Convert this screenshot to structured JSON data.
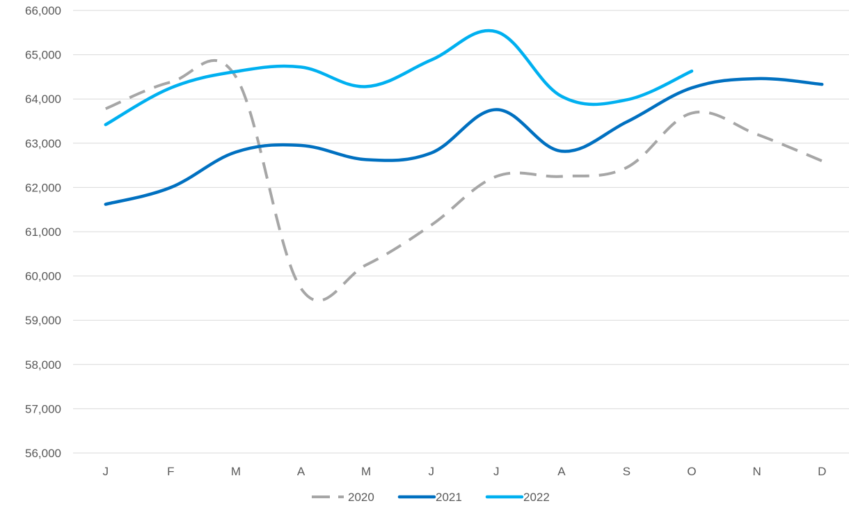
{
  "chart_data": {
    "type": "line",
    "title": "",
    "xlabel": "",
    "ylabel": "",
    "categories": [
      "J",
      "F",
      "M",
      "A",
      "M",
      "J",
      "J",
      "A",
      "S",
      "O",
      "N",
      "D"
    ],
    "ylim": [
      56000,
      66000
    ],
    "yticks": [
      56000,
      57000,
      58000,
      59000,
      60000,
      61000,
      62000,
      63000,
      64000,
      65000,
      66000
    ],
    "ytick_labels": [
      "56,000",
      "57,000",
      "58,000",
      "59,000",
      "60,000",
      "61,000",
      "62,000",
      "63,000",
      "64,000",
      "65,000",
      "66,000"
    ],
    "grid": true,
    "legend": "bottom",
    "series": [
      {
        "name": "2020",
        "color": "#a6a6a6",
        "style": "dashed",
        "values": [
          63780,
          64380,
          64500,
          59720,
          60250,
          61150,
          62250,
          62250,
          62450,
          63680,
          63200,
          62600
        ]
      },
      {
        "name": "2021",
        "color": "#0070c0",
        "style": "solid",
        "values": [
          61620,
          62000,
          62800,
          62950,
          62630,
          62780,
          63760,
          62820,
          63480,
          64250,
          64460,
          64330
        ]
      },
      {
        "name": "2022",
        "color": "#00b0f0",
        "style": "solid",
        "values": [
          63420,
          64250,
          64620,
          64720,
          64280,
          64880,
          65520,
          64060,
          63980,
          64630,
          null,
          null
        ]
      }
    ]
  }
}
